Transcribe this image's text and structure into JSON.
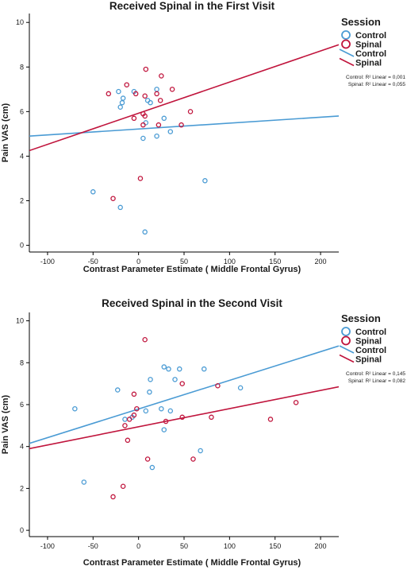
{
  "colors": {
    "control": "#4a9bd4",
    "spinal": "#c0143c",
    "axis": "#000000"
  },
  "chart_data": [
    {
      "type": "scatter",
      "title": "Received Spinal in the First Visit",
      "xlabel": "Contrast Parameter Estimate ( Middle Frontal Gyrus)",
      "ylabel": "Pain VAS (cm)",
      "xlim": [
        -120,
        220
      ],
      "ylim": [
        -0.3,
        10.4
      ],
      "xticks": [
        "-100",
        "-50",
        "0",
        "50",
        "100",
        "150",
        "200"
      ],
      "xtick_values": [
        -100,
        -50,
        0,
        50,
        100,
        150,
        200
      ],
      "yticks": [
        "0",
        "2",
        "4",
        "6",
        "8",
        "10"
      ],
      "ytick_values": [
        0,
        2,
        4,
        6,
        8,
        10
      ],
      "legend": {
        "title": "Session",
        "items": [
          {
            "label": "Control",
            "kind": "marker",
            "series": "control"
          },
          {
            "label": "Spinal",
            "kind": "marker",
            "series": "spinal"
          },
          {
            "label": "Control",
            "kind": "line",
            "series": "control"
          },
          {
            "label": "Spinal",
            "kind": "line",
            "series": "spinal"
          }
        ],
        "placement": "top-right"
      },
      "r2_labels": [
        "Control: R² Linear = 0,001",
        "Spinal: R² Linear = 0,055"
      ],
      "series": [
        {
          "name": "Control",
          "key": "control",
          "points": [
            [
              -50,
              2.4
            ],
            [
              -20,
              1.7
            ],
            [
              -22,
              6.9
            ],
            [
              -20,
              6.2
            ],
            [
              -18,
              6.4
            ],
            [
              -17,
              6.6
            ],
            [
              -5,
              6.9
            ],
            [
              5,
              4.8
            ],
            [
              7,
              0.6
            ],
            [
              8,
              5.5
            ],
            [
              10,
              6.5
            ],
            [
              13,
              6.4
            ],
            [
              20,
              4.9
            ],
            [
              20,
              7.0
            ],
            [
              28,
              5.7
            ],
            [
              35,
              5.1
            ],
            [
              73,
              2.9
            ]
          ],
          "fit": [
            [
              -120,
              4.9
            ],
            [
              220,
              5.8
            ]
          ]
        },
        {
          "name": "Spinal",
          "key": "spinal",
          "points": [
            [
              -33,
              6.8
            ],
            [
              -13,
              7.2
            ],
            [
              -28,
              2.1
            ],
            [
              -5,
              5.7
            ],
            [
              -3,
              6.8
            ],
            [
              2,
              3.0
            ],
            [
              5,
              5.4
            ],
            [
              5,
              5.9
            ],
            [
              7,
              5.8
            ],
            [
              7,
              6.7
            ],
            [
              8,
              7.9
            ],
            [
              20,
              6.8
            ],
            [
              22,
              5.4
            ],
            [
              24,
              6.5
            ],
            [
              25,
              7.6
            ],
            [
              37,
              7.0
            ],
            [
              47,
              5.4
            ],
            [
              57,
              6.0
            ]
          ],
          "fit": [
            [
              -120,
              4.25
            ],
            [
              220,
              9.0
            ]
          ]
        }
      ]
    },
    {
      "type": "scatter",
      "title": "Received Spinal in the Second Visit",
      "xlabel": "Contrast Parameter Estimate ( Middle Frontal Gyrus)",
      "ylabel": "Pain VAS (cm)",
      "xlim": [
        -120,
        220
      ],
      "ylim": [
        -0.3,
        10.4
      ],
      "xticks": [
        "-100",
        "-50",
        "0",
        "50",
        "100",
        "150",
        "200"
      ],
      "xtick_values": [
        -100,
        -50,
        0,
        50,
        100,
        150,
        200
      ],
      "yticks": [
        "0",
        "2",
        "4",
        "6",
        "8",
        "10"
      ],
      "ytick_values": [
        0,
        2,
        4,
        6,
        8,
        10
      ],
      "legend": {
        "title": "Session",
        "items": [
          {
            "label": "Control",
            "kind": "marker",
            "series": "control"
          },
          {
            "label": "Spinal",
            "kind": "marker",
            "series": "spinal"
          },
          {
            "label": "Control",
            "kind": "line",
            "series": "control"
          },
          {
            "label": "Spinal",
            "kind": "line",
            "series": "spinal"
          }
        ],
        "placement": "top-right"
      },
      "r2_labels": [
        "Control: R² Linear = 0,145",
        "Spinal: R² Linear = 0,082"
      ],
      "series": [
        {
          "name": "Control",
          "key": "control",
          "points": [
            [
              -70,
              5.8
            ],
            [
              -60,
              2.3
            ],
            [
              -23,
              6.7
            ],
            [
              -15,
              5.3
            ],
            [
              -7,
              5.4
            ],
            [
              8,
              5.7
            ],
            [
              12,
              6.6
            ],
            [
              13,
              7.2
            ],
            [
              15,
              3.0
            ],
            [
              25,
              5.8
            ],
            [
              28,
              7.8
            ],
            [
              28,
              4.8
            ],
            [
              33,
              7.7
            ],
            [
              35,
              5.7
            ],
            [
              40,
              7.2
            ],
            [
              45,
              7.7
            ],
            [
              68,
              3.8
            ],
            [
              72,
              7.7
            ],
            [
              112,
              6.8
            ]
          ],
          "fit": [
            [
              -120,
              4.15
            ],
            [
              220,
              8.8
            ]
          ]
        },
        {
          "name": "Spinal",
          "key": "spinal",
          "points": [
            [
              -28,
              1.6
            ],
            [
              -17,
              2.1
            ],
            [
              -15,
              5.0
            ],
            [
              -12,
              4.3
            ],
            [
              -10,
              5.3
            ],
            [
              -5,
              6.5
            ],
            [
              -5,
              5.5
            ],
            [
              -2,
              5.8
            ],
            [
              7,
              9.1
            ],
            [
              10,
              3.4
            ],
            [
              30,
              5.2
            ],
            [
              48,
              7.0
            ],
            [
              48,
              5.4
            ],
            [
              60,
              3.4
            ],
            [
              80,
              5.4
            ],
            [
              87,
              6.9
            ],
            [
              145,
              5.3
            ],
            [
              173,
              6.1
            ]
          ],
          "fit": [
            [
              -120,
              3.9
            ],
            [
              220,
              6.85
            ]
          ]
        }
      ]
    }
  ]
}
